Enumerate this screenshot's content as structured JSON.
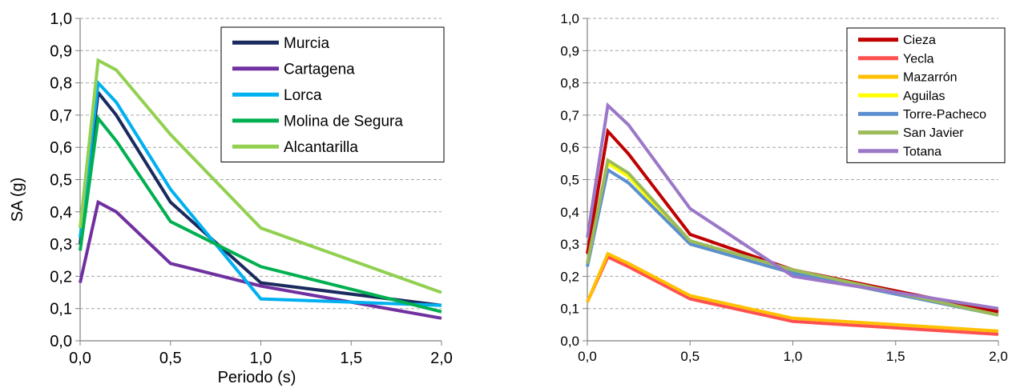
{
  "chart_data": [
    {
      "type": "line",
      "title": "",
      "xlabel": "Periodo (s)",
      "ylabel": "SA (g)",
      "xlim": [
        0,
        2
      ],
      "ylim": [
        0,
        1
      ],
      "x_ticks": [
        "0,0",
        "0,5",
        "1,0",
        "1,5",
        "2,0"
      ],
      "y_ticks": [
        "0,0",
        "0,1",
        "0,2",
        "0,3",
        "0,4",
        "0,5",
        "0,6",
        "0,7",
        "0,8",
        "0,9",
        "1,0"
      ],
      "grid": "horizontal dashed",
      "legend_position": "top-right",
      "x": [
        0,
        0.1,
        0.2,
        0.5,
        1.0,
        2.0
      ],
      "series": [
        {
          "name": "Murcia",
          "color": "#1a2a5e",
          "values": [
            0.3,
            0.77,
            0.7,
            0.43,
            0.18,
            0.11
          ]
        },
        {
          "name": "Cartagena",
          "color": "#7030a0",
          "values": [
            0.18,
            0.43,
            0.4,
            0.24,
            0.17,
            0.07
          ]
        },
        {
          "name": "Lorca",
          "color": "#00b0f0",
          "values": [
            0.32,
            0.8,
            0.74,
            0.47,
            0.13,
            0.11
          ]
        },
        {
          "name": "Molina de Segura",
          "color": "#00b050",
          "values": [
            0.28,
            0.69,
            0.62,
            0.37,
            0.23,
            0.09
          ]
        },
        {
          "name": "Alcantarilla",
          "color": "#92d050",
          "values": [
            0.35,
            0.87,
            0.84,
            0.64,
            0.35,
            0.15
          ]
        }
      ]
    },
    {
      "type": "line",
      "title": "",
      "xlabel": "",
      "ylabel": "",
      "xlim": [
        0,
        2
      ],
      "ylim": [
        0,
        1
      ],
      "x_ticks": [
        "0,0",
        "0,5",
        "1,0",
        "1,5",
        "2,0"
      ],
      "y_ticks": [
        "0,0",
        "0,1",
        "0,2",
        "0,3",
        "0,4",
        "0,5",
        "0,6",
        "0,7",
        "0,8",
        "0,9",
        "1,0"
      ],
      "grid": "horizontal dashed",
      "legend_position": "top-right",
      "x": [
        0,
        0.1,
        0.2,
        0.5,
        1.0,
        2.0
      ],
      "series": [
        {
          "name": "Cieza",
          "color": "#c00000",
          "values": [
            0.27,
            0.65,
            0.58,
            0.33,
            0.22,
            0.09
          ]
        },
        {
          "name": "Yecla",
          "color": "#ff5050",
          "values": [
            0.12,
            0.26,
            0.23,
            0.13,
            0.06,
            0.02
          ]
        },
        {
          "name": "Mazarrón",
          "color": "#ffc000",
          "values": [
            0.12,
            0.27,
            0.24,
            0.14,
            0.07,
            0.03
          ]
        },
        {
          "name": "Aguilas",
          "color": "#ffff00",
          "values": [
            0.24,
            0.55,
            0.51,
            0.3,
            0.21,
            0.08
          ]
        },
        {
          "name": "Torre-Pacheco",
          "color": "#5b8fd0",
          "values": [
            0.23,
            0.53,
            0.49,
            0.3,
            0.21,
            0.08
          ]
        },
        {
          "name": "San Javier",
          "color": "#9bbb59",
          "values": [
            0.24,
            0.56,
            0.52,
            0.31,
            0.22,
            0.08
          ]
        },
        {
          "name": "Totana",
          "color": "#9b77c8",
          "values": [
            0.32,
            0.73,
            0.67,
            0.41,
            0.2,
            0.1
          ]
        }
      ]
    }
  ]
}
